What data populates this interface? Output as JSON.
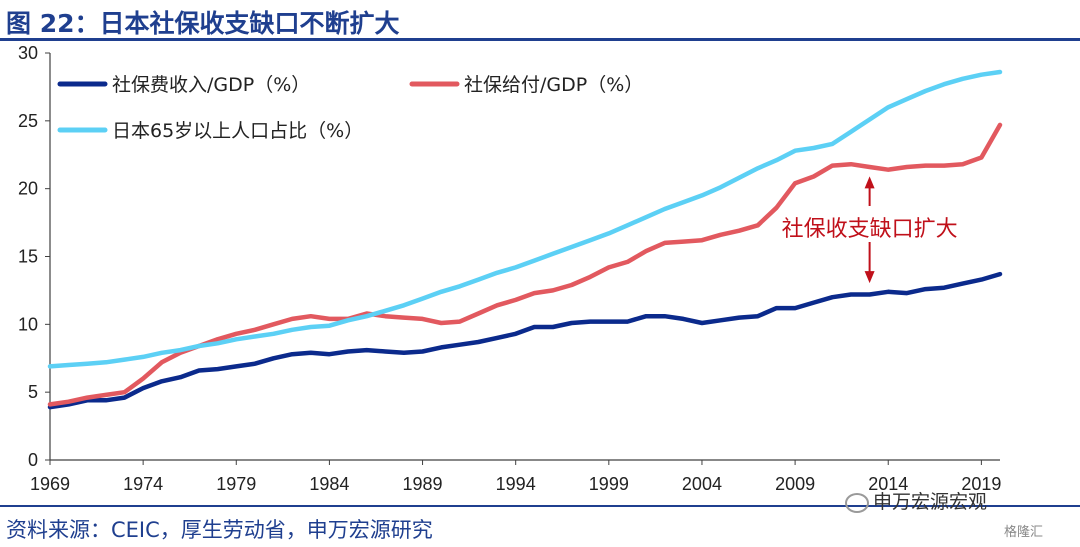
{
  "title": "图 22：日本社保收支缺口不断扩大",
  "source": "资料来源：CEIC，厚生劳动省，申万宏源研究",
  "watermark": "申万宏源宏观",
  "watermark2": "格隆汇",
  "colors": {
    "income": "#0b2a8c",
    "payment": "#e2595f",
    "aging": "#5cd0f5",
    "title": "#1f3f8f",
    "annotation": "#c0101a"
  },
  "chart_data": {
    "type": "line",
    "ylim": [
      0,
      30
    ],
    "xlim": [
      1969,
      2020
    ],
    "yticks": [
      0,
      5,
      10,
      15,
      20,
      25,
      30
    ],
    "xticks": [
      1969,
      1974,
      1979,
      1984,
      1989,
      1994,
      1999,
      2004,
      2009,
      2014,
      2019
    ],
    "x": [
      1969,
      1970,
      1971,
      1972,
      1973,
      1974,
      1975,
      1976,
      1977,
      1978,
      1979,
      1980,
      1981,
      1982,
      1983,
      1984,
      1985,
      1986,
      1987,
      1988,
      1989,
      1990,
      1991,
      1992,
      1993,
      1994,
      1995,
      1996,
      1997,
      1998,
      1999,
      2000,
      2001,
      2002,
      2003,
      2004,
      2005,
      2006,
      2007,
      2008,
      2009,
      2010,
      2011,
      2012,
      2013,
      2014,
      2015,
      2016,
      2017,
      2018,
      2019,
      2020
    ],
    "series": [
      {
        "name": "社保费收入/GDP（%）",
        "key": "income",
        "values": [
          3.9,
          4.1,
          4.4,
          4.4,
          4.6,
          5.3,
          5.8,
          6.1,
          6.6,
          6.7,
          6.9,
          7.1,
          7.5,
          7.8,
          7.9,
          7.8,
          8.0,
          8.1,
          8.0,
          7.9,
          8.0,
          8.3,
          8.5,
          8.7,
          9.0,
          9.3,
          9.8,
          9.8,
          10.1,
          10.2,
          10.2,
          10.2,
          10.6,
          10.6,
          10.4,
          10.1,
          10.3,
          10.5,
          10.6,
          11.2,
          11.2,
          11.6,
          12.0,
          12.2,
          12.2,
          12.4,
          12.3,
          12.6,
          12.7,
          13.0,
          13.3,
          13.7
        ]
      },
      {
        "name": "社保给付/GDP（%）",
        "key": "payment",
        "values": [
          4.1,
          4.3,
          4.6,
          4.8,
          5.0,
          6.0,
          7.2,
          7.9,
          8.4,
          8.9,
          9.3,
          9.6,
          10.0,
          10.4,
          10.6,
          10.4,
          10.4,
          10.8,
          10.6,
          10.5,
          10.4,
          10.1,
          10.2,
          10.8,
          11.4,
          11.8,
          12.3,
          12.5,
          12.9,
          13.5,
          14.2,
          14.6,
          15.4,
          16.0,
          16.1,
          16.2,
          16.6,
          16.9,
          17.3,
          18.6,
          20.4,
          20.9,
          21.7,
          21.8,
          21.6,
          21.4,
          21.6,
          21.7,
          21.7,
          21.8,
          22.3,
          24.7
        ]
      },
      {
        "name": "日本65岁以上人口占比（%）",
        "key": "aging",
        "values": [
          6.9,
          7.0,
          7.1,
          7.2,
          7.4,
          7.6,
          7.9,
          8.1,
          8.4,
          8.6,
          8.9,
          9.1,
          9.3,
          9.6,
          9.8,
          9.9,
          10.3,
          10.6,
          11.0,
          11.4,
          11.9,
          12.4,
          12.8,
          13.3,
          13.8,
          14.2,
          14.7,
          15.2,
          15.7,
          16.2,
          16.7,
          17.3,
          17.9,
          18.5,
          19.0,
          19.5,
          20.1,
          20.8,
          21.5,
          22.1,
          22.8,
          23.0,
          23.3,
          24.2,
          25.1,
          26.0,
          26.6,
          27.2,
          27.7,
          28.1,
          28.4,
          28.6
        ]
      }
    ],
    "annotation": "社保收支缺口扩大",
    "annotation_year": 2013,
    "arrow_top": 21.5,
    "arrow_bottom": 12.3,
    "grid": false,
    "legend_position": "top-left"
  }
}
